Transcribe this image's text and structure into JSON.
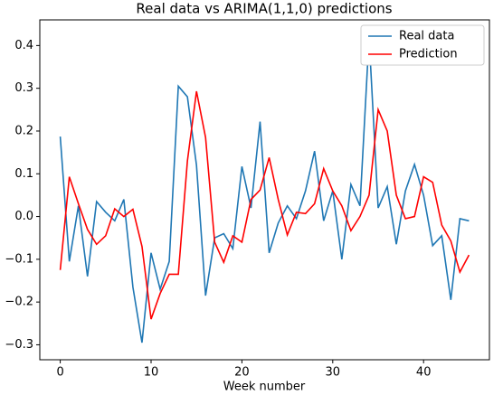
{
  "chart_data": {
    "type": "line",
    "title": "Real data vs ARIMA(1,1,0) predictions",
    "xlabel": "Week number",
    "x": [
      0,
      1,
      2,
      3,
      4,
      5,
      6,
      7,
      8,
      9,
      10,
      11,
      12,
      13,
      14,
      15,
      16,
      17,
      18,
      19,
      20,
      21,
      22,
      23,
      24,
      25,
      26,
      27,
      28,
      29,
      30,
      31,
      32,
      33,
      34,
      35,
      36,
      37,
      38,
      39,
      40,
      41,
      42,
      43,
      44,
      45
    ],
    "series": [
      {
        "name": "Real data",
        "color": "#1f77b4",
        "values": [
          0.187,
          -0.105,
          0.025,
          -0.14,
          0.035,
          0.01,
          -0.01,
          0.04,
          -0.165,
          -0.295,
          -0.085,
          -0.17,
          -0.105,
          0.305,
          0.28,
          0.12,
          -0.185,
          -0.05,
          -0.04,
          -0.075,
          0.117,
          0.02,
          0.222,
          -0.085,
          -0.015,
          0.025,
          -0.005,
          0.06,
          0.153,
          -0.01,
          0.06,
          -0.1,
          0.075,
          0.025,
          0.42,
          0.02,
          0.07,
          -0.065,
          0.06,
          0.122,
          0.05,
          -0.068,
          -0.045,
          -0.195,
          -0.005,
          -0.01
        ]
      },
      {
        "name": "Prediction",
        "color": "#ff0000",
        "values": [
          -0.125,
          0.093,
          0.03,
          -0.03,
          -0.065,
          -0.045,
          0.018,
          0.0,
          0.017,
          -0.07,
          -0.24,
          -0.18,
          -0.135,
          -0.135,
          0.13,
          0.293,
          0.185,
          -0.06,
          -0.107,
          -0.045,
          -0.06,
          0.04,
          0.062,
          0.138,
          0.04,
          -0.043,
          0.01,
          0.007,
          0.03,
          0.112,
          0.06,
          0.025,
          -0.033,
          0.0,
          0.05,
          0.25,
          0.2,
          0.05,
          -0.005,
          0.0,
          0.093,
          0.08,
          -0.02,
          -0.057,
          -0.13,
          -0.09
        ]
      }
    ],
    "xlim": [
      -2.25,
      47.25
    ],
    "xticks": [
      0,
      10,
      20,
      30,
      40
    ],
    "ylim": [
      -0.335,
      0.46
    ],
    "yticks": [
      {
        "value": -0.3,
        "label": "−0.3"
      },
      {
        "value": -0.2,
        "label": "−0.2"
      },
      {
        "value": -0.1,
        "label": "−0.1"
      },
      {
        "value": 0.0,
        "label": "0.0"
      },
      0.1,
      0.2,
      0.3,
      0.4
    ],
    "legend": "upper right"
  }
}
